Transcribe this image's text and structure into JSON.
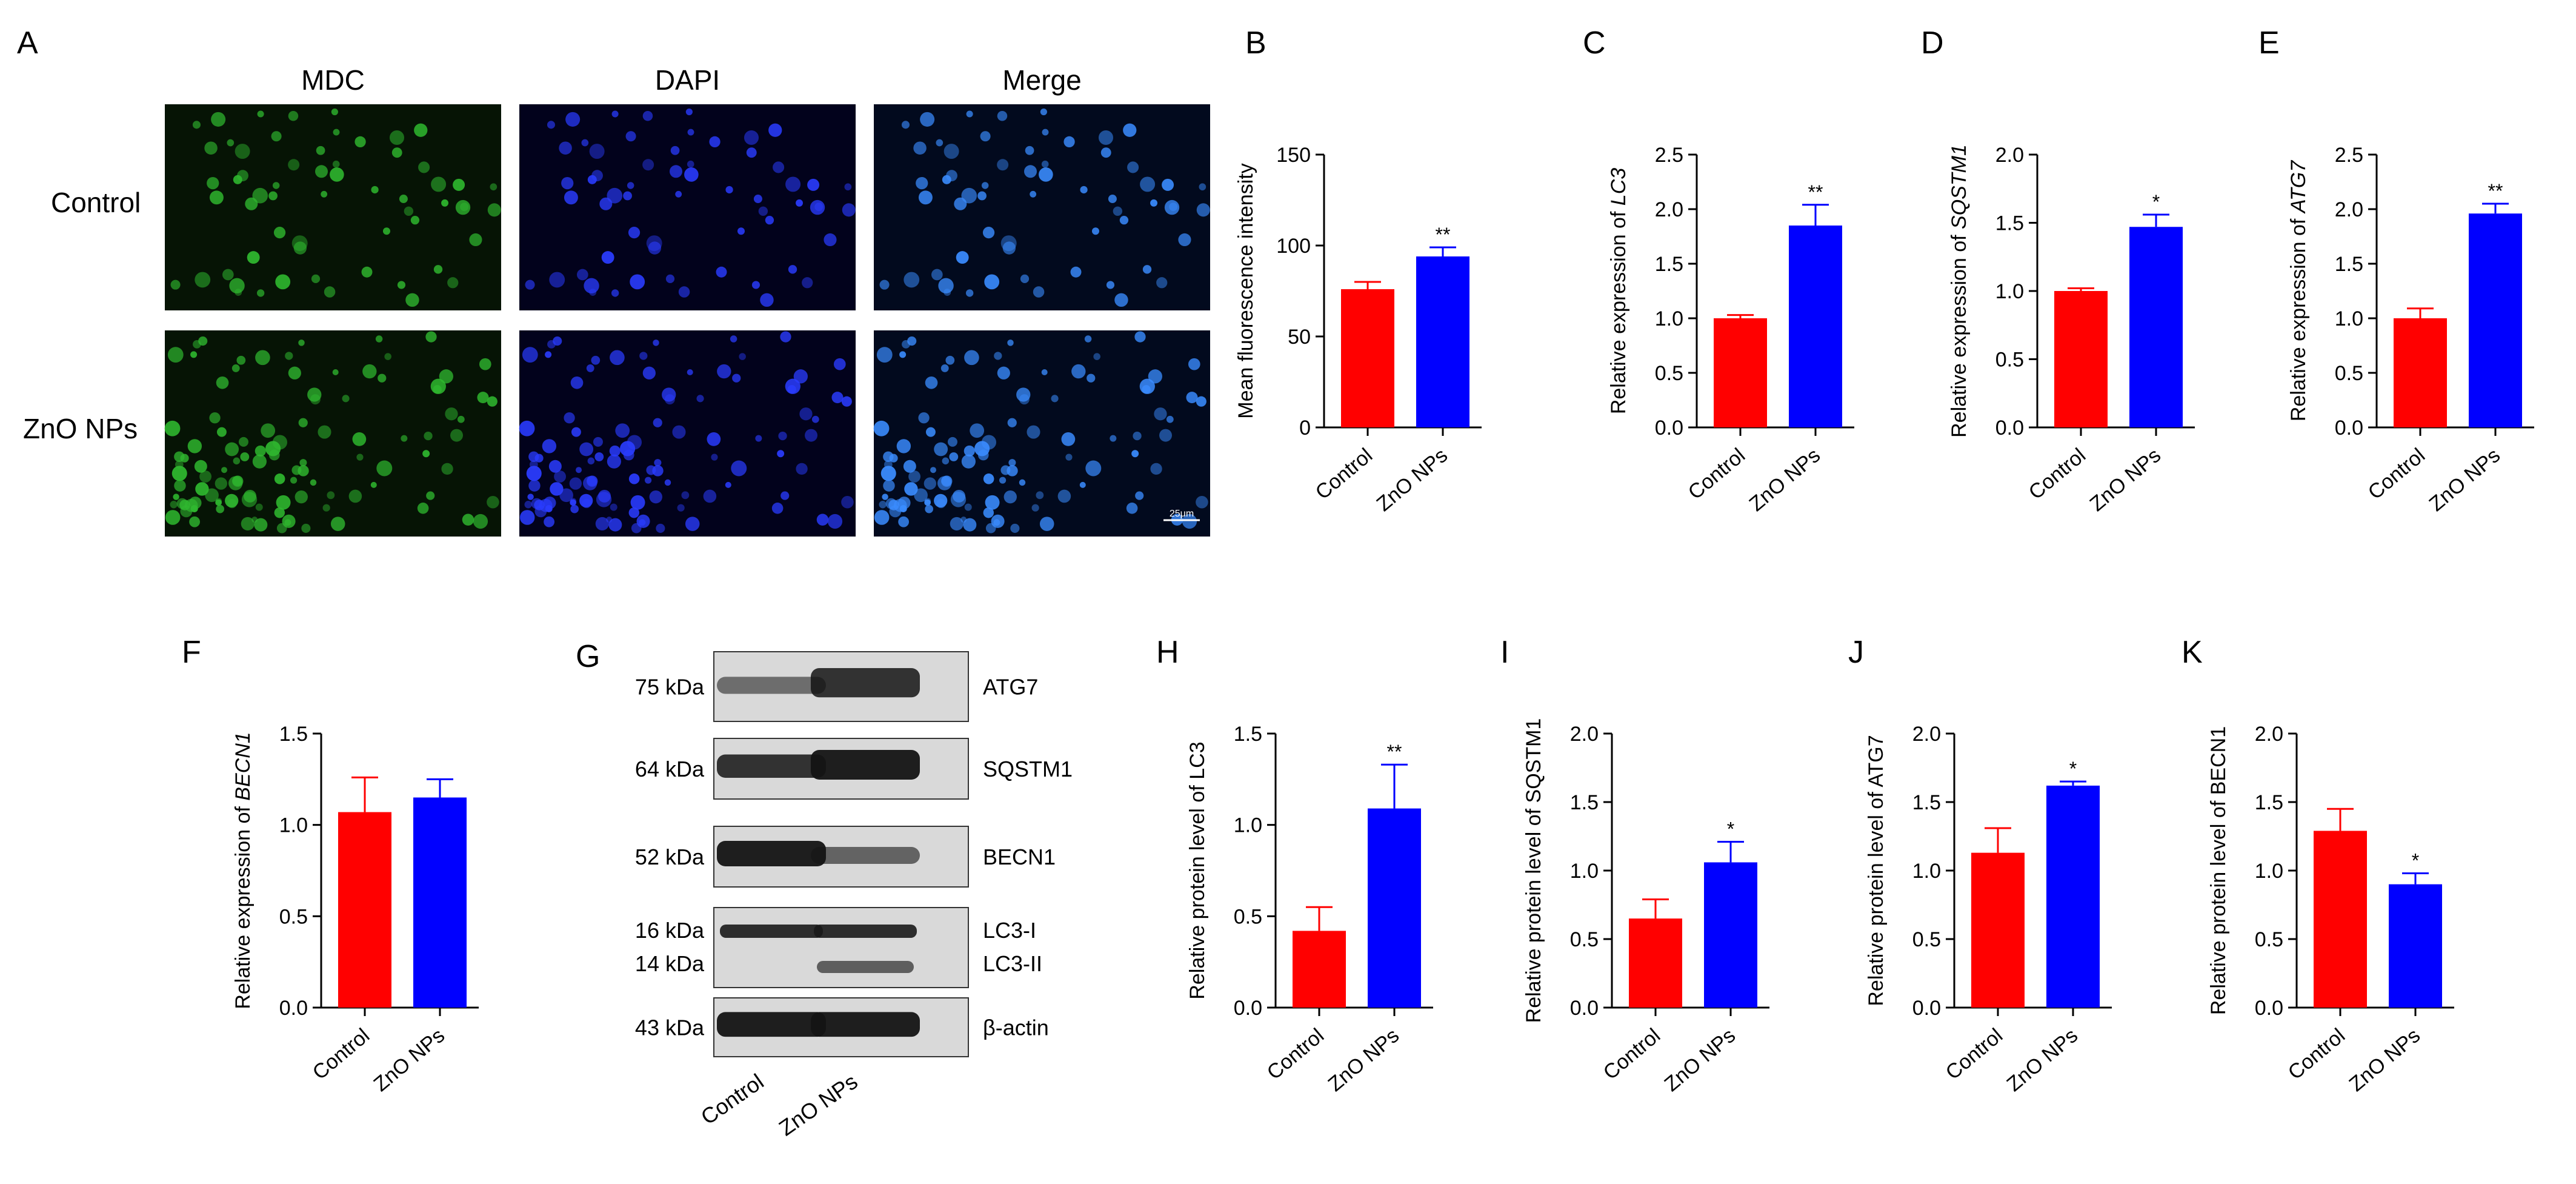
{
  "micrograph": {
    "panel": "A",
    "columns": [
      "MDC",
      "DAPI",
      "Merge"
    ],
    "rows": [
      "Control",
      "ZnO NPs"
    ],
    "scale_bar": "25μm",
    "channel_colors": {
      "MDC": "#2fb82f",
      "DAPI": "#2a3cff",
      "Merge": "#3a8cff"
    }
  },
  "western_blot": {
    "panel": "G",
    "lanes": [
      "Control",
      "ZnO NPs"
    ],
    "rows": [
      {
        "kda": [
          "75 kDa"
        ],
        "proteins": [
          "ATG7"
        ]
      },
      {
        "kda": [
          "64 kDa"
        ],
        "proteins": [
          "SQSTM1"
        ]
      },
      {
        "kda": [
          "52 kDa"
        ],
        "proteins": [
          "BECN1"
        ]
      },
      {
        "kda": [
          "16 kDa",
          "14 kDa"
        ],
        "proteins": [
          "LC3-I",
          "LC3-II"
        ]
      },
      {
        "kda": [
          "43 kDa"
        ],
        "proteins": [
          "β-actin"
        ]
      }
    ]
  },
  "chart_data": [
    {
      "panel": "B",
      "type": "bar",
      "categories": [
        "Control",
        "ZnO NPs"
      ],
      "values": [
        76,
        94
      ],
      "errors": [
        4,
        5
      ],
      "significance": [
        "",
        "**"
      ],
      "ylabel": "Mean fluorescence intensity",
      "ylim": [
        0,
        150
      ],
      "yticks": [
        "0",
        "50",
        "100",
        "150"
      ],
      "colors": [
        "#ff0000",
        "#0000ff"
      ]
    },
    {
      "panel": "C",
      "type": "bar",
      "categories": [
        "Control",
        "ZnO NPs"
      ],
      "values": [
        1.0,
        1.85
      ],
      "errors": [
        0.03,
        0.19
      ],
      "significance": [
        "",
        "**"
      ],
      "ylabel": "Relative expression of LC3",
      "ylim": [
        0,
        2.5
      ],
      "yticks": [
        "0.0",
        "0.5",
        "1.0",
        "1.5",
        "2.0",
        "2.5"
      ],
      "colors": [
        "#ff0000",
        "#0000ff"
      ]
    },
    {
      "panel": "D",
      "type": "bar",
      "categories": [
        "Control",
        "ZnO NPs"
      ],
      "values": [
        1.0,
        1.47
      ],
      "errors": [
        0.02,
        0.09
      ],
      "significance": [
        "",
        "*"
      ],
      "ylabel": "Relative expression of SQSTM1",
      "ylim": [
        0,
        2.0
      ],
      "yticks": [
        "0.0",
        "0.5",
        "1.0",
        "1.5",
        "2.0"
      ],
      "colors": [
        "#ff0000",
        "#0000ff"
      ]
    },
    {
      "panel": "E",
      "type": "bar",
      "categories": [
        "Control",
        "ZnO NPs"
      ],
      "values": [
        1.0,
        1.96
      ],
      "errors": [
        0.09,
        0.09
      ],
      "significance": [
        "",
        "**"
      ],
      "ylabel": "Relative expression of ATG7",
      "ylim": [
        0,
        2.5
      ],
      "yticks": [
        "0.0",
        "0.5",
        "1.0",
        "1.5",
        "2.0",
        "2.5"
      ],
      "colors": [
        "#ff0000",
        "#0000ff"
      ]
    },
    {
      "panel": "F",
      "type": "bar",
      "categories": [
        "Control",
        "ZnO NPs"
      ],
      "values": [
        1.07,
        1.15
      ],
      "errors": [
        0.19,
        0.1
      ],
      "significance": [
        "",
        ""
      ],
      "ylabel": "Relative expression of BECN1",
      "ylim": [
        0,
        1.5
      ],
      "yticks": [
        "0.0",
        "0.5",
        "1.0",
        "1.5"
      ],
      "colors": [
        "#ff0000",
        "#0000ff"
      ]
    },
    {
      "panel": "H",
      "type": "bar",
      "categories": [
        "Control",
        "ZnO NPs"
      ],
      "values": [
        0.42,
        1.09
      ],
      "errors": [
        0.13,
        0.24
      ],
      "significance": [
        "",
        "**"
      ],
      "ylabel": "Relative protein level of LC3",
      "ylim": [
        0,
        1.5
      ],
      "yticks": [
        "0.0",
        "0.5",
        "1.0",
        "1.5"
      ],
      "colors": [
        "#ff0000",
        "#0000ff"
      ]
    },
    {
      "panel": "I",
      "type": "bar",
      "categories": [
        "Control",
        "ZnO NPs"
      ],
      "values": [
        0.65,
        1.06
      ],
      "errors": [
        0.14,
        0.15
      ],
      "significance": [
        "",
        "*"
      ],
      "ylabel": "Relative protein level of SQSTM1",
      "ylim": [
        0,
        2.0
      ],
      "yticks": [
        "0.0",
        "0.5",
        "1.0",
        "1.5",
        "2.0"
      ],
      "colors": [
        "#ff0000",
        "#0000ff"
      ]
    },
    {
      "panel": "J",
      "type": "bar",
      "categories": [
        "Control",
        "ZnO NPs"
      ],
      "values": [
        1.13,
        1.62
      ],
      "errors": [
        0.18,
        0.03
      ],
      "significance": [
        "",
        "*"
      ],
      "ylabel": "Relative protein level of ATG7",
      "ylim": [
        0,
        2.0
      ],
      "yticks": [
        "0.0",
        "0.5",
        "1.0",
        "1.5",
        "2.0"
      ],
      "colors": [
        "#ff0000",
        "#0000ff"
      ]
    },
    {
      "panel": "K",
      "type": "bar",
      "categories": [
        "Control",
        "ZnO NPs"
      ],
      "values": [
        1.29,
        0.9
      ],
      "errors": [
        0.16,
        0.08
      ],
      "significance": [
        "",
        "*"
      ],
      "ylabel": "Relative protein level of BECN1",
      "ylim": [
        0,
        2.0
      ],
      "yticks": [
        "0.0",
        "0.5",
        "1.0",
        "1.5",
        "2.0"
      ],
      "colors": [
        "#ff0000",
        "#0000ff"
      ]
    }
  ]
}
